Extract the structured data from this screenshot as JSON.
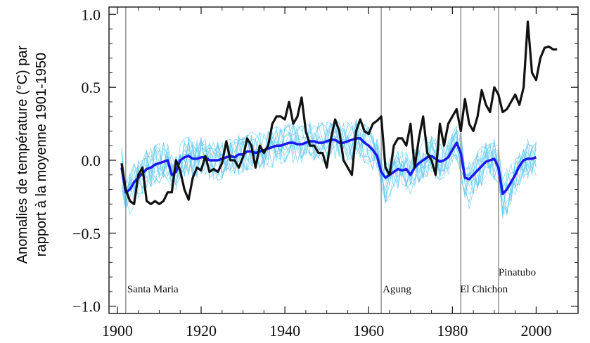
{
  "chart_data": {
    "type": "line",
    "xlabel": "",
    "ylabel_line1": "Anomalies de température (°C) par",
    "ylabel_line2": "rapport à la moyenne 1901-1950",
    "xlim": [
      1898,
      2010
    ],
    "ylim": [
      -1.05,
      1.05
    ],
    "xticks": [
      1900,
      1920,
      1940,
      1960,
      1980,
      2000
    ],
    "xtick_labels": [
      "1900",
      "1920",
      "1940",
      "1960",
      "1980",
      "2000"
    ],
    "yticks": [
      1.0,
      0.5,
      0.0,
      -0.5,
      -1.0
    ],
    "ytick_labels": [
      "1.0",
      "0.5",
      "0.0",
      "−0.5",
      "−1.0"
    ],
    "grid": false,
    "colors": {
      "observed": "#111111",
      "ensemble_mean": "#1a1aee",
      "members": "#5ec8ef",
      "eruption": "#999999",
      "ylabel": "#3aa3a3"
    },
    "eruptions": [
      {
        "label": "Santa Maria",
        "year": 1902
      },
      {
        "label": "Agung",
        "year": 1963
      },
      {
        "label": "El Chichon",
        "year": 1982
      },
      {
        "label": "Pinatubo",
        "year": 1991
      }
    ],
    "series": [
      {
        "role": "observed",
        "x": [
          1901,
          1902,
          1903,
          1904,
          1905,
          1906,
          1907,
          1908,
          1909,
          1910,
          1911,
          1912,
          1913,
          1914,
          1915,
          1916,
          1917,
          1918,
          1919,
          1920,
          1921,
          1922,
          1923,
          1924,
          1925,
          1926,
          1927,
          1928,
          1929,
          1930,
          1931,
          1932,
          1933,
          1934,
          1935,
          1936,
          1937,
          1938,
          1939,
          1940,
          1941,
          1942,
          1943,
          1944,
          1945,
          1946,
          1947,
          1948,
          1949,
          1950,
          1951,
          1952,
          1953,
          1954,
          1955,
          1956,
          1957,
          1958,
          1959,
          1960,
          1961,
          1962,
          1963,
          1964,
          1965,
          1966,
          1967,
          1968,
          1969,
          1970,
          1971,
          1972,
          1973,
          1974,
          1975,
          1976,
          1977,
          1978,
          1979,
          1980,
          1981,
          1982,
          1983,
          1984,
          1985,
          1986,
          1987,
          1988,
          1989,
          1990,
          1991,
          1992,
          1993,
          1994,
          1995,
          1996,
          1997,
          1998,
          1999,
          2000,
          2001,
          2002,
          2003,
          2004,
          2005
        ],
        "y": [
          -0.02,
          -0.2,
          -0.28,
          -0.3,
          -0.1,
          -0.05,
          -0.28,
          -0.3,
          -0.28,
          -0.3,
          -0.28,
          -0.22,
          -0.22,
          0.0,
          -0.07,
          -0.2,
          -0.27,
          -0.12,
          -0.05,
          -0.07,
          0.03,
          -0.08,
          -0.06,
          -0.08,
          -0.02,
          0.13,
          0.0,
          0.0,
          -0.05,
          0.02,
          0.15,
          0.1,
          -0.05,
          0.1,
          0.05,
          0.1,
          0.25,
          0.3,
          0.3,
          0.28,
          0.4,
          0.25,
          0.3,
          0.43,
          0.2,
          0.1,
          0.1,
          0.05,
          0.05,
          -0.05,
          0.15,
          0.28,
          0.2,
          0.0,
          -0.05,
          -0.1,
          0.2,
          0.28,
          0.2,
          0.18,
          0.25,
          0.27,
          0.3,
          -0.05,
          -0.1,
          0.1,
          0.15,
          0.15,
          0.1,
          0.25,
          -0.05,
          0.15,
          0.3,
          0.05,
          0.0,
          -0.1,
          0.25,
          0.1,
          0.25,
          0.3,
          0.35,
          0.2,
          0.42,
          0.25,
          0.2,
          0.3,
          0.48,
          0.38,
          0.33,
          0.5,
          0.45,
          0.33,
          0.35,
          0.4,
          0.45,
          0.38,
          0.5,
          0.95,
          0.6,
          0.55,
          0.7,
          0.77,
          0.78,
          0.76,
          0.76
        ]
      },
      {
        "role": "ensemble_mean",
        "x": [
          1901,
          1902,
          1903,
          1904,
          1905,
          1906,
          1907,
          1908,
          1909,
          1910,
          1911,
          1912,
          1913,
          1914,
          1915,
          1916,
          1917,
          1918,
          1919,
          1920,
          1921,
          1922,
          1923,
          1924,
          1925,
          1926,
          1927,
          1928,
          1929,
          1930,
          1931,
          1932,
          1933,
          1934,
          1935,
          1936,
          1937,
          1938,
          1939,
          1940,
          1941,
          1942,
          1943,
          1944,
          1945,
          1946,
          1947,
          1948,
          1949,
          1950,
          1951,
          1952,
          1953,
          1954,
          1955,
          1956,
          1957,
          1958,
          1959,
          1960,
          1961,
          1962,
          1963,
          1964,
          1965,
          1966,
          1967,
          1968,
          1969,
          1970,
          1971,
          1972,
          1973,
          1974,
          1975,
          1976,
          1977,
          1978,
          1979,
          1980,
          1981,
          1982,
          1983,
          1984,
          1985,
          1986,
          1987,
          1988,
          1989,
          1990,
          1991,
          1992,
          1993,
          1994,
          1995,
          1996,
          1997,
          1998,
          1999,
          2000
        ],
        "y": [
          -0.05,
          -0.22,
          -0.2,
          -0.15,
          -0.12,
          -0.09,
          -0.06,
          -0.05,
          -0.03,
          -0.02,
          -0.01,
          0.0,
          -0.1,
          -0.08,
          0.0,
          0.02,
          0.03,
          0.01,
          0.01,
          0.02,
          0.02,
          0.0,
          0.0,
          0.0,
          0.01,
          0.02,
          0.03,
          0.02,
          0.04,
          0.04,
          0.06,
          0.06,
          0.05,
          0.06,
          0.07,
          0.08,
          0.09,
          0.1,
          0.1,
          0.11,
          0.12,
          0.12,
          0.11,
          0.11,
          0.12,
          0.13,
          0.13,
          0.12,
          0.12,
          0.13,
          0.14,
          0.14,
          0.12,
          0.12,
          0.13,
          0.14,
          0.15,
          0.15,
          0.12,
          0.1,
          0.07,
          0.03,
          -0.08,
          -0.12,
          -0.1,
          -0.08,
          -0.06,
          -0.07,
          -0.06,
          -0.1,
          -0.05,
          -0.02,
          0.0,
          0.02,
          0.03,
          0.01,
          -0.01,
          0.0,
          0.02,
          0.07,
          0.12,
          0.05,
          -0.12,
          -0.13,
          -0.1,
          -0.07,
          -0.04,
          -0.01,
          0.0,
          0.01,
          -0.05,
          -0.23,
          -0.2,
          -0.15,
          -0.1,
          -0.04,
          0.0,
          0.01,
          0.01,
          0.02
        ]
      }
    ]
  }
}
